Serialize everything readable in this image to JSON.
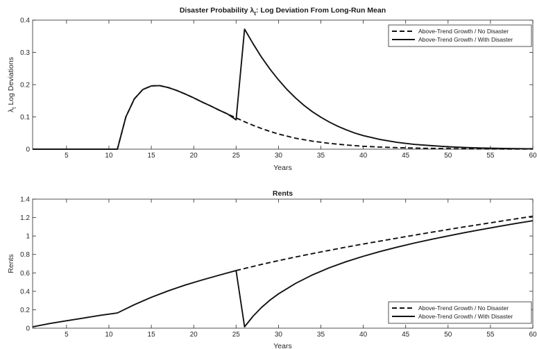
{
  "chart_data": [
    {
      "type": "line",
      "title": "Disaster Probability",
      "title_symbol": "λ",
      "title_subscript": "t",
      "title_rest": ": Log Deviation From Long-Run Mean",
      "xlabel": "Years",
      "ylabel_symbol": "λ",
      "ylabel_subscript": "t",
      "ylabel_rest": " Log Deviations",
      "xlim": [
        1,
        60
      ],
      "ylim": [
        0,
        0.4
      ],
      "xticks": [
        "5",
        "10",
        "15",
        "20",
        "25",
        "30",
        "35",
        "40",
        "45",
        "50",
        "55",
        "60"
      ],
      "yticks": [
        "0",
        "0.1",
        "0.2",
        "0.3",
        "0.4"
      ],
      "legend_position": "top-right",
      "grid": false,
      "series": [
        {
          "name": "Above-Trend Growth / No Disaster",
          "style": "dashed",
          "x": [
            1,
            11,
            12,
            13,
            14,
            15,
            16,
            17,
            18,
            19,
            20,
            21,
            22,
            23,
            24,
            25,
            26,
            27,
            28,
            29,
            30,
            32,
            34,
            36,
            38,
            40,
            42,
            44,
            46,
            48,
            50,
            52,
            54,
            56,
            58,
            60
          ],
          "y": [
            0,
            0,
            0.1,
            0.156,
            0.185,
            0.196,
            0.197,
            0.191,
            0.182,
            0.171,
            0.159,
            0.146,
            0.134,
            0.121,
            0.109,
            0.097,
            0.085,
            0.074,
            0.064,
            0.055,
            0.047,
            0.034,
            0.025,
            0.018,
            0.013,
            0.009,
            0.0065,
            0.0047,
            0.0034,
            0.0024,
            0.0017,
            0.0012,
            0.0009,
            0.0006,
            0.0004,
            0.0003
          ]
        },
        {
          "name": "Above-Trend Growth / With Disaster",
          "style": "solid",
          "x": [
            1,
            11,
            12,
            13,
            14,
            15,
            16,
            17,
            18,
            19,
            20,
            21,
            22,
            23,
            24,
            25,
            26,
            27,
            28,
            29,
            30,
            31,
            32,
            33,
            34,
            35,
            36,
            37,
            38,
            39,
            40,
            42,
            44,
            46,
            48,
            50,
            52,
            54,
            56,
            58,
            60
          ],
          "y": [
            0,
            0,
            0.1,
            0.156,
            0.185,
            0.196,
            0.197,
            0.191,
            0.182,
            0.171,
            0.159,
            0.146,
            0.134,
            0.121,
            0.109,
            0.091,
            0.372,
            0.327,
            0.285,
            0.248,
            0.215,
            0.185,
            0.159,
            0.136,
            0.116,
            0.099,
            0.084,
            0.071,
            0.06,
            0.05,
            0.042,
            0.03,
            0.021,
            0.015,
            0.011,
            0.0075,
            0.0052,
            0.0036,
            0.0025,
            0.0017,
            0.0012
          ]
        }
      ]
    },
    {
      "type": "line",
      "title": "Rents",
      "xlabel": "Years",
      "ylabel": "Rents",
      "xlim": [
        1,
        60
      ],
      "ylim": [
        0,
        1.4
      ],
      "xticks": [
        "5",
        "10",
        "15",
        "20",
        "25",
        "30",
        "35",
        "40",
        "45",
        "50",
        "55",
        "60"
      ],
      "yticks": [
        "0",
        "0.2",
        "0.4",
        "0.6",
        "0.8",
        "1",
        "1.2",
        "1.4"
      ],
      "legend_position": "bottom-right",
      "grid": false,
      "series": [
        {
          "name": "Above-Trend Growth / No Disaster",
          "style": "dashed",
          "x": [
            25,
            28,
            30,
            32,
            35,
            38,
            40,
            42,
            45,
            48,
            50,
            52,
            55,
            58,
            60
          ],
          "y": [
            0.625,
            0.692,
            0.733,
            0.772,
            0.827,
            0.88,
            0.913,
            0.945,
            0.993,
            1.04,
            1.07,
            1.1,
            1.143,
            1.186,
            1.215
          ]
        },
        {
          "name": "Above-Trend Growth / With Disaster",
          "style": "solid",
          "x": [
            1,
            3,
            5,
            7,
            9,
            11,
            13,
            15,
            17,
            19,
            21,
            23,
            25,
            26,
            27,
            28,
            29,
            30,
            32,
            34,
            36,
            38,
            40,
            42,
            44,
            46,
            48,
            50,
            52,
            54,
            56,
            58,
            60
          ],
          "y": [
            0.015,
            0.05,
            0.08,
            0.11,
            0.14,
            0.165,
            0.255,
            0.335,
            0.405,
            0.468,
            0.523,
            0.575,
            0.625,
            0.015,
            0.13,
            0.225,
            0.305,
            0.372,
            0.485,
            0.578,
            0.656,
            0.722,
            0.78,
            0.832,
            0.879,
            0.923,
            0.963,
            1.001,
            1.037,
            1.071,
            1.104,
            1.136,
            1.166
          ]
        }
      ]
    }
  ]
}
